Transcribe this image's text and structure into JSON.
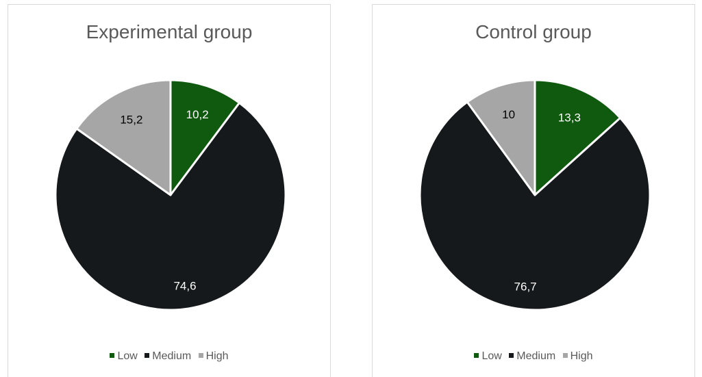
{
  "chart_data": [
    {
      "type": "pie",
      "title": "Experimental group",
      "categories": [
        "Low",
        "Medium",
        "High"
      ],
      "values": [
        10.2,
        74.6,
        15.2
      ],
      "labels": [
        "10,2",
        "74,6",
        "15,2"
      ],
      "colors": [
        "#0f5a0f",
        "#15191b",
        "#a6a6a6"
      ],
      "legend": "bottom"
    },
    {
      "type": "pie",
      "title": "Control group",
      "categories": [
        "Low",
        "Medium",
        "High"
      ],
      "values": [
        13.3,
        76.7,
        10
      ],
      "labels": [
        "13,3",
        "76,7",
        "10"
      ],
      "colors": [
        "#0f5a0f",
        "#15191b",
        "#a6a6a6"
      ],
      "legend": "bottom"
    }
  ]
}
